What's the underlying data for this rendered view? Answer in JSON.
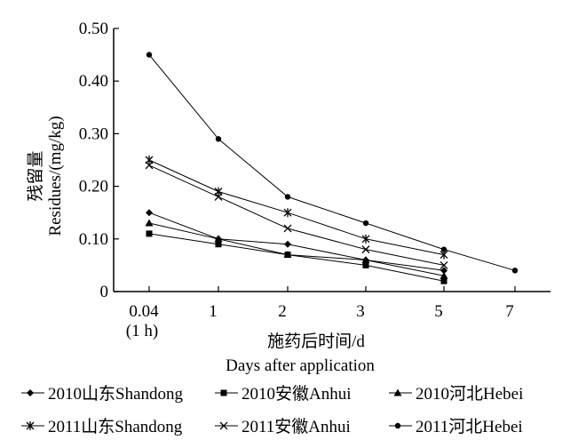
{
  "chart_data": {
    "type": "line",
    "xlabel_cn": "施药后时间/d",
    "xlabel_en": "Days after application",
    "ylabel_cn": "残留量",
    "ylabel_en": "Residues/(mg/kg)",
    "ylim": [
      0,
      0.5
    ],
    "y_ticks": [
      "0",
      "0.10",
      "0.20",
      "0.30",
      "0.40",
      "0.50"
    ],
    "y_tick_values": [
      0,
      0.1,
      0.2,
      0.3,
      0.4,
      0.5
    ],
    "x_ticks": [
      "0.04",
      "1",
      "2",
      "3",
      "5",
      "7"
    ],
    "x_tick_sublabel": "(1 h)",
    "grid": false,
    "legend_position": "bottom",
    "series": [
      {
        "name": "2010山东Shandong",
        "marker": "diamond",
        "values": [
          [
            0.04,
            0.15
          ],
          [
            1,
            0.1
          ],
          [
            2,
            0.09
          ],
          [
            3,
            0.06
          ],
          [
            5,
            0.04
          ]
        ]
      },
      {
        "name": "2010安徽Anhui",
        "marker": "square",
        "values": [
          [
            0.04,
            0.11
          ],
          [
            1,
            0.09
          ],
          [
            2,
            0.07
          ],
          [
            3,
            0.05
          ],
          [
            5,
            0.02
          ]
        ]
      },
      {
        "name": "2010河北Hebei",
        "marker": "triangle",
        "values": [
          [
            0.04,
            0.13
          ],
          [
            1,
            0.1
          ],
          [
            2,
            0.07
          ],
          [
            3,
            0.06
          ],
          [
            5,
            0.03
          ]
        ]
      },
      {
        "name": "2011山东Shandong",
        "marker": "star",
        "values": [
          [
            0.04,
            0.25
          ],
          [
            1,
            0.19
          ],
          [
            2,
            0.15
          ],
          [
            3,
            0.1
          ],
          [
            5,
            0.07
          ]
        ]
      },
      {
        "name": "2011安徽Anhui",
        "marker": "cross",
        "values": [
          [
            0.04,
            0.24
          ],
          [
            1,
            0.18
          ],
          [
            2,
            0.12
          ],
          [
            3,
            0.08
          ],
          [
            5,
            0.05
          ]
        ]
      },
      {
        "name": "2011河北Hebei",
        "marker": "circle",
        "values": [
          [
            0.04,
            0.45
          ],
          [
            1,
            0.29
          ],
          [
            2,
            0.18
          ],
          [
            3,
            0.13
          ],
          [
            5,
            0.08
          ],
          [
            7,
            0.04
          ]
        ]
      }
    ]
  }
}
